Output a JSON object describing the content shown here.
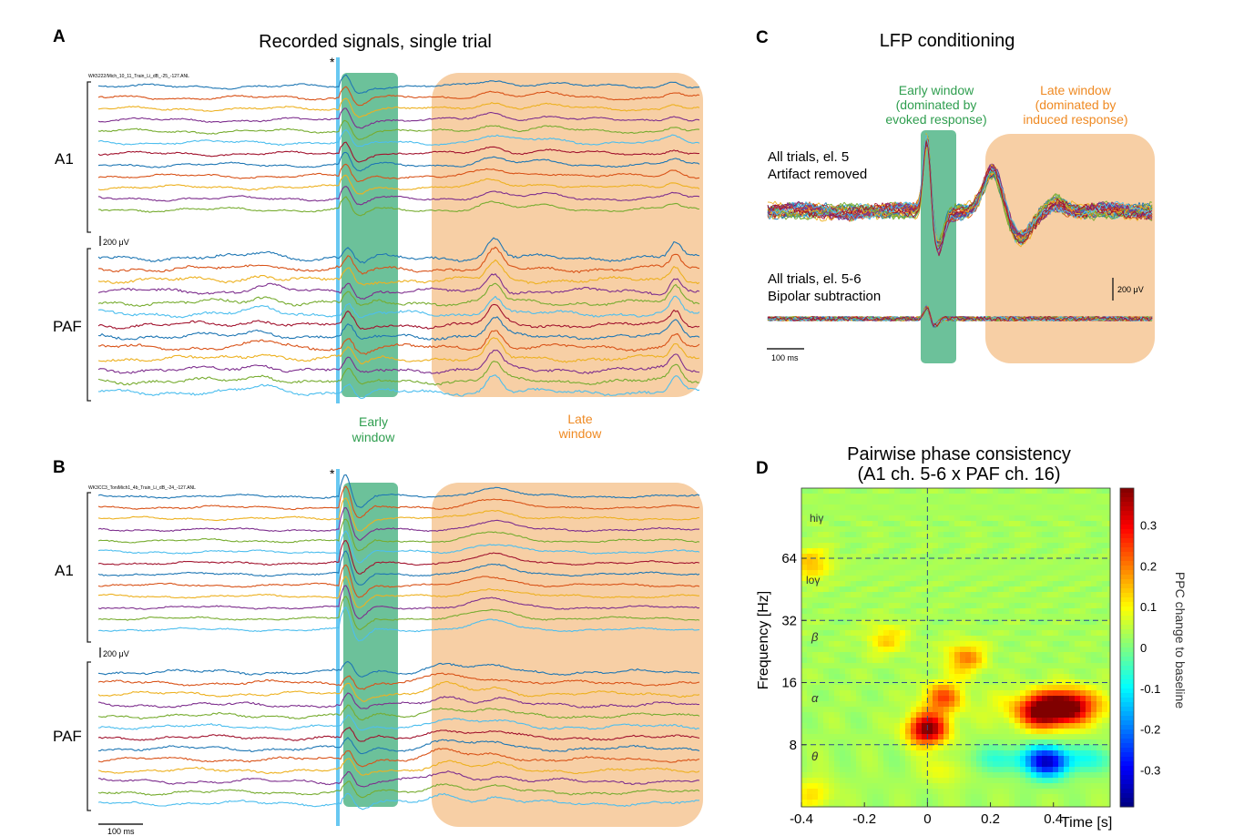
{
  "panels": {
    "A": {
      "letter": "A",
      "title": "Recorded signals, single trial",
      "filename": "WK5222/Mich_10_11_Train_Li_dB_-25_-127.ANL",
      "star": "*",
      "a1_label": "A1",
      "paf_label": "PAF",
      "scale": "200 μV",
      "early_label": [
        "Early",
        "window"
      ],
      "late_label": [
        "Late",
        "window"
      ]
    },
    "B": {
      "letter": "B",
      "filename": "WK3CC3_ToniMich1_4b_Train_Li_dB_-24_-127.ANL",
      "star": "*",
      "a1_label": "A1",
      "paf_label": "PAF",
      "scale": "200 μV",
      "time_scale": "100 ms"
    },
    "C": {
      "letter": "C",
      "title": "LFP conditioning",
      "early_label": [
        "Early window",
        "(dominated by",
        "evoked response)"
      ],
      "late_label": [
        "Late window",
        "(dominated by",
        "induced response)"
      ],
      "trace1_label": [
        "All trials, el. 5",
        "Artifact removed"
      ],
      "trace2_label": [
        "All trials, el. 5-6",
        "Bipolar subtraction"
      ],
      "scale": "200 μV",
      "time_scale": "100 ms"
    },
    "D": {
      "letter": "D",
      "title": [
        "Pairwise phase consistency",
        "(A1 ch. 5-6 x PAF ch. 16)"
      ],
      "xlabel": "Time [s]",
      "ylabel": "Frequency [Hz]",
      "colorbar_label": "PPC change to baseline",
      "band_labels": [
        "hiγ",
        "loγ",
        "β",
        "α",
        "θ"
      ]
    }
  },
  "colors": {
    "early_window": "#6cc19a",
    "late_window": "#f7cfa5",
    "early_text": "#2f9e4f",
    "late_text": "#ef8a23",
    "trace_palette": [
      "#1f77b4",
      "#d95319",
      "#edb120",
      "#7e2f8e",
      "#77ac30",
      "#4dbeee",
      "#a2142f"
    ]
  },
  "chart_data": {
    "type": "heatmap",
    "title": "Pairwise phase consistency (A1 ch. 5-6 x PAF ch. 16)",
    "xlabel": "Time [s]",
    "ylabel": "Frequency [Hz]",
    "x_ticks": [
      -0.4,
      -0.2,
      0,
      0.2,
      0.4
    ],
    "xlim": [
      -0.4,
      0.58
    ],
    "y_scale": "log2",
    "y_ticks": [
      8,
      16,
      32,
      64
    ],
    "ylim": [
      4,
      140
    ],
    "colorbar_ticks": [
      0.3,
      0.2,
      0.1,
      0,
      -0.1,
      -0.2,
      -0.3
    ],
    "colorbar_range": [
      -0.39,
      0.39
    ],
    "dashed_lines_freq": [
      8,
      16,
      32,
      64
    ],
    "dashed_line_time": 0,
    "hotspots": [
      {
        "time": 0.0,
        "freq": 9.5,
        "ppc": 0.36
      },
      {
        "time": 0.05,
        "freq": 13.5,
        "ppc": 0.2
      },
      {
        "time": 0.12,
        "freq": 21,
        "ppc": 0.16
      },
      {
        "time": 0.37,
        "freq": 11.5,
        "ppc": 0.25
      },
      {
        "time": 0.45,
        "freq": 12.5,
        "ppc": 0.2
      },
      {
        "time": -0.37,
        "freq": 60,
        "ppc": 0.12
      },
      {
        "time": -0.13,
        "freq": 26,
        "ppc": 0.1
      },
      {
        "time": 0.05,
        "freq": 6.2,
        "ppc": 0.08
      },
      {
        "time": -0.36,
        "freq": 4.6,
        "ppc": 0.09
      },
      {
        "time": 0.38,
        "freq": 6.5,
        "ppc": -0.25
      }
    ]
  }
}
